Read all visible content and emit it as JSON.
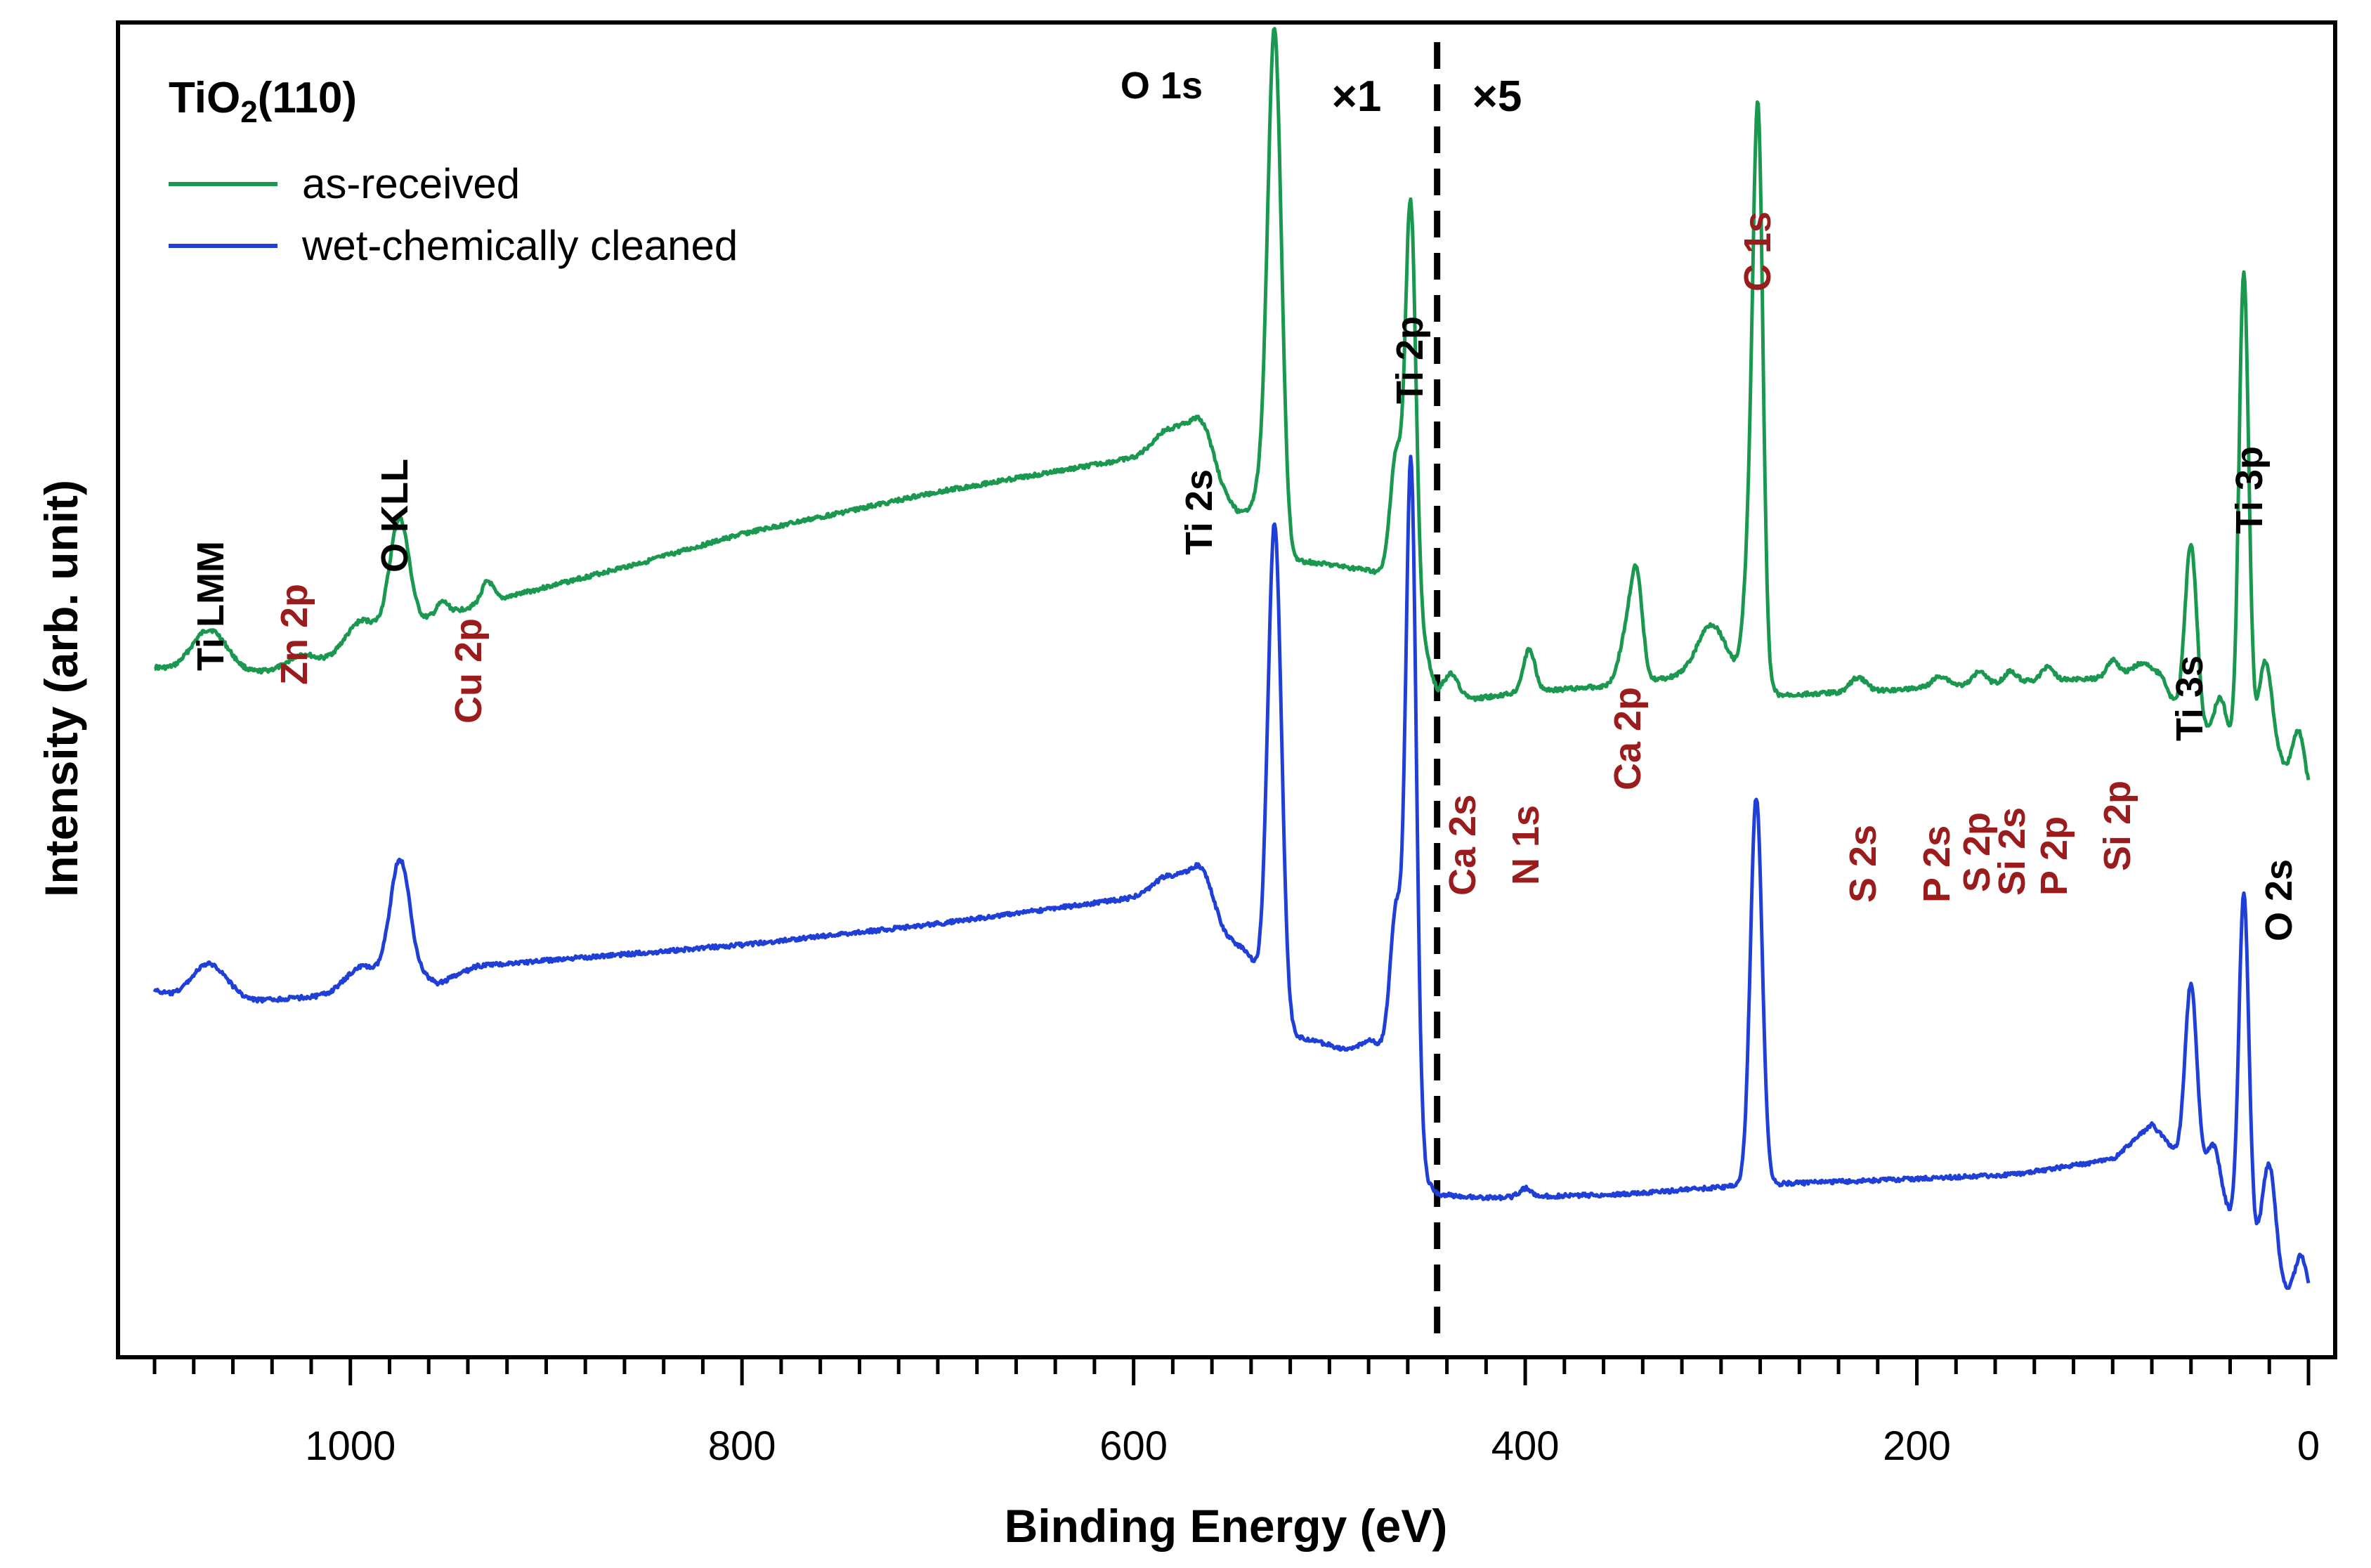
{
  "chart_data": {
    "type": "line",
    "title": "TiO₂(110)",
    "xlabel": "Binding Energy (eV)",
    "ylabel": "Intensity (arb. unit)",
    "xlim": [
      1100,
      0
    ],
    "xticks": [
      1000,
      800,
      600,
      400,
      200,
      0
    ],
    "tick_labels": [
      "1000",
      "800",
      "600",
      "400",
      "200",
      "0"
    ],
    "scale_marker_value": 445,
    "scale_labels": [
      "×1",
      "×5"
    ],
    "colors": {
      "as_received": "#1a9850",
      "cleaned": "#1f3fd6",
      "impurity": "#9b1c1c",
      "substrate": "#000000"
    },
    "legend_position": "top-left",
    "series": [
      {
        "name": "as-received",
        "color": "#1a9850",
        "baseline": [
          [
            1100,
            950
          ],
          [
            1090,
            955
          ],
          [
            1050,
            958
          ],
          [
            1000,
            935
          ],
          [
            975,
            905
          ],
          [
            960,
            880
          ],
          [
            920,
            850
          ],
          [
            850,
            800
          ],
          [
            800,
            760
          ],
          [
            700,
            700
          ],
          [
            600,
            652
          ],
          [
            575,
            630
          ],
          [
            550,
            720
          ],
          [
            530,
            795
          ],
          [
            510,
            800
          ],
          [
            480,
            812
          ],
          [
            460,
            823
          ],
          [
            445,
            990
          ],
          [
            440,
            1000
          ],
          [
            400,
            985
          ],
          [
            350,
            975
          ],
          [
            320,
            962
          ],
          [
            300,
            958
          ],
          [
            285,
            960
          ],
          [
            270,
            990
          ],
          [
            200,
            980
          ],
          [
            150,
            970
          ],
          [
            100,
            965
          ],
          [
            75,
            965
          ],
          [
            70,
            995
          ],
          [
            60,
            1035
          ],
          [
            50,
            1045
          ],
          [
            40,
            1060
          ],
          [
            25,
            1080
          ],
          [
            15,
            1085
          ],
          [
            0,
            1130
          ]
        ],
        "peaks": [
          [
            1072,
            -60,
            9
          ],
          [
            1025,
            -15,
            6
          ],
          [
            995,
            -45,
            8
          ],
          [
            975,
            -165,
            5
          ],
          [
            953,
            -18,
            3
          ],
          [
            930,
            -30,
            3
          ],
          [
            583,
            -25,
            7
          ],
          [
            565,
            -65,
            6
          ],
          [
            535,
            -65,
            5
          ],
          [
            528,
            -730,
            3.5
          ],
          [
            466,
            -170,
            3
          ],
          [
            460,
            -140,
            2.5
          ],
          [
            458,
            -440,
            2.5
          ],
          [
            438,
            -40,
            4
          ],
          [
            398,
            -60,
            3
          ],
          [
            348,
            -70,
            4
          ],
          [
            343,
            -130,
            3
          ],
          [
            305,
            -70,
            7
          ],
          [
            285,
            -190,
            3
          ],
          [
            281,
            -740,
            2.5
          ],
          [
            230,
            -20,
            4
          ],
          [
            188,
            -15,
            4
          ],
          [
            168,
            -20,
            3
          ],
          [
            152,
            -15,
            3
          ],
          [
            133,
            -20,
            3
          ],
          [
            100,
            -25,
            3
          ],
          [
            85,
            -20,
            6
          ],
          [
            60,
            -260,
            3
          ],
          [
            45,
            -60,
            3
          ],
          [
            33,
            -680,
            2.5
          ],
          [
            22,
            -140,
            3.5
          ],
          [
            5,
            -75,
            3
          ]
        ]
      },
      {
        "name": "wet-chemically cleaned",
        "color": "#1f3fd6",
        "baseline": [
          [
            1100,
            1410
          ],
          [
            1090,
            1420
          ],
          [
            1050,
            1425
          ],
          [
            1000,
            1415
          ],
          [
            980,
            1400
          ],
          [
            970,
            1380
          ],
          [
            955,
            1400
          ],
          [
            935,
            1375
          ],
          [
            800,
            1345
          ],
          [
            700,
            1315
          ],
          [
            600,
            1278
          ],
          [
            575,
            1270
          ],
          [
            550,
            1350
          ],
          [
            530,
            1470
          ],
          [
            510,
            1480
          ],
          [
            490,
            1495
          ],
          [
            480,
            1480
          ],
          [
            465,
            1500
          ],
          [
            455,
            1600
          ],
          [
            450,
            1680
          ],
          [
            445,
            1700
          ],
          [
            420,
            1705
          ],
          [
            350,
            1700
          ],
          [
            300,
            1690
          ],
          [
            285,
            1685
          ],
          [
            270,
            1685
          ],
          [
            200,
            1678
          ],
          [
            150,
            1672
          ],
          [
            100,
            1650
          ],
          [
            80,
            1600
          ],
          [
            65,
            1650
          ],
          [
            60,
            1660
          ],
          [
            50,
            1670
          ],
          [
            40,
            1730
          ],
          [
            30,
            1760
          ],
          [
            25,
            1795
          ],
          [
            15,
            1840
          ],
          [
            0,
            1850
          ]
        ],
        "peaks": [
          [
            1072,
            -50,
            9
          ],
          [
            995,
            -35,
            8
          ],
          [
            975,
            -165,
            5
          ],
          [
            583,
            -25,
            7
          ],
          [
            565,
            -65,
            6
          ],
          [
            540,
            -45,
            6
          ],
          [
            528,
            -720,
            3.5
          ],
          [
            466,
            -200,
            3
          ],
          [
            460,
            -180,
            2.5
          ],
          [
            458,
            -770,
            2.5
          ],
          [
            400,
            -12,
            3
          ],
          [
            282,
            -550,
            3
          ],
          [
            60,
            -260,
            3
          ],
          [
            48,
            -50,
            3
          ],
          [
            33,
            -480,
            2.5
          ],
          [
            20,
            -160,
            3.5
          ],
          [
            4,
            -60,
            3
          ]
        ]
      }
    ],
    "peak_labels": [
      {
        "text": "Ti LMM",
        "x": 1067,
        "kind": "substrate"
      },
      {
        "text": "Zn 2p",
        "x": 1022,
        "kind": "impurity"
      },
      {
        "text": "O KLL",
        "x": 970,
        "kind": "substrate"
      },
      {
        "text": "Cu 2p",
        "x": 935,
        "kind": "impurity"
      },
      {
        "text": "Ti 2s",
        "x": 565,
        "kind": "substrate"
      },
      {
        "text": "O 1s",
        "x": 530,
        "kind": "substrate"
      },
      {
        "text": "Ti 2p",
        "x": 457,
        "kind": "substrate"
      },
      {
        "text": "Ca 2s",
        "x": 438,
        "kind": "impurity"
      },
      {
        "text": "N 1s",
        "x": 397,
        "kind": "impurity"
      },
      {
        "text": "Ca 2p",
        "x": 347,
        "kind": "impurity"
      },
      {
        "text": "C 1s",
        "x": 282,
        "kind": "impurity"
      },
      {
        "text": "S 2s",
        "x": 228,
        "kind": "impurity"
      },
      {
        "text": "P 2s",
        "x": 188,
        "kind": "impurity"
      },
      {
        "text": "S 2p",
        "x": 168,
        "kind": "impurity"
      },
      {
        "text": "Si 2s",
        "x": 151,
        "kind": "impurity"
      },
      {
        "text": "P 2p",
        "x": 133,
        "kind": "impurity"
      },
      {
        "text": "Si 2p",
        "x": 100,
        "kind": "impurity"
      },
      {
        "text": "Ti 3s",
        "x": 60,
        "kind": "substrate"
      },
      {
        "text": "Ti 3p",
        "x": 33,
        "kind": "substrate"
      },
      {
        "text": "O 2s",
        "x": 20,
        "kind": "substrate"
      }
    ]
  },
  "legend": {
    "title_main": "TiO",
    "title_sub": "2",
    "title_rest": "(110)",
    "items": [
      {
        "label": "as-received",
        "color": "#1a9850"
      },
      {
        "label": "wet-chemically cleaned",
        "color": "#1f3fd6"
      }
    ]
  }
}
